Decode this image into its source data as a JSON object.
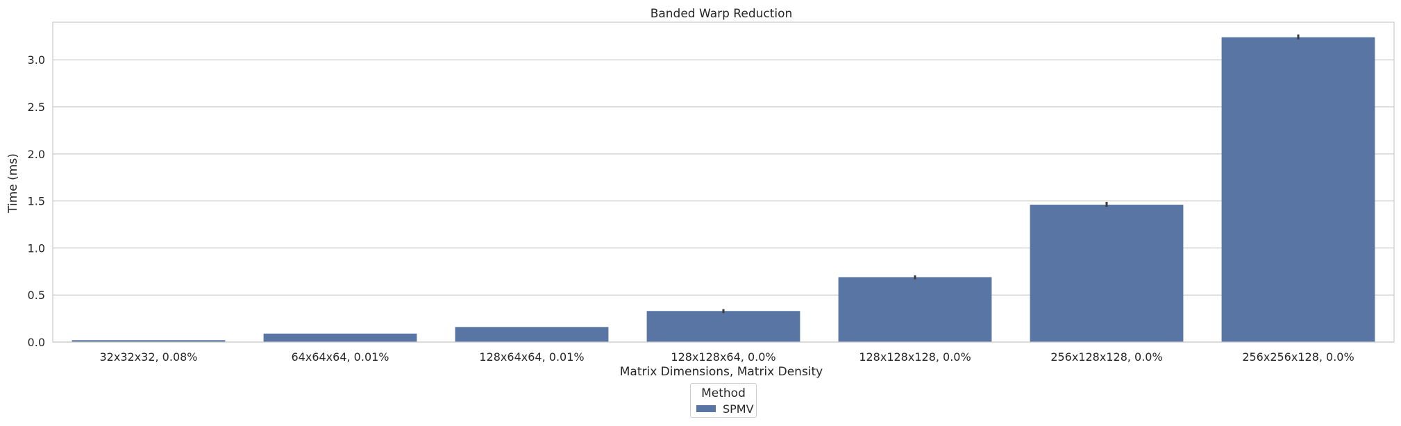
{
  "chart_data": {
    "type": "bar",
    "title": "Banded Warp Reduction",
    "xlabel": "Matrix Dimensions, Matrix Density",
    "ylabel": "Time (ms)",
    "categories": [
      "32x32x32, 0.08%",
      "64x64x64, 0.01%",
      "128x64x64, 0.01%",
      "128x128x64, 0.0%",
      "128x128x128, 0.0%",
      "256x128x128, 0.0%",
      "256x256x128, 0.0%"
    ],
    "series": [
      {
        "name": "SPMV",
        "color": "#5875a4",
        "values": [
          0.02,
          0.09,
          0.16,
          0.33,
          0.69,
          1.46,
          3.24
        ],
        "error_upper": [
          0.02,
          0.09,
          0.16,
          0.35,
          0.71,
          1.49,
          3.27
        ]
      }
    ],
    "ylim": [
      0,
      3.4
    ],
    "yticks": [
      "0.0",
      "0.5",
      "1.0",
      "1.5",
      "2.0",
      "2.5",
      "3.0"
    ],
    "grid": "horizontal",
    "legend": {
      "title": "Method",
      "placement": "bottom-center"
    }
  }
}
